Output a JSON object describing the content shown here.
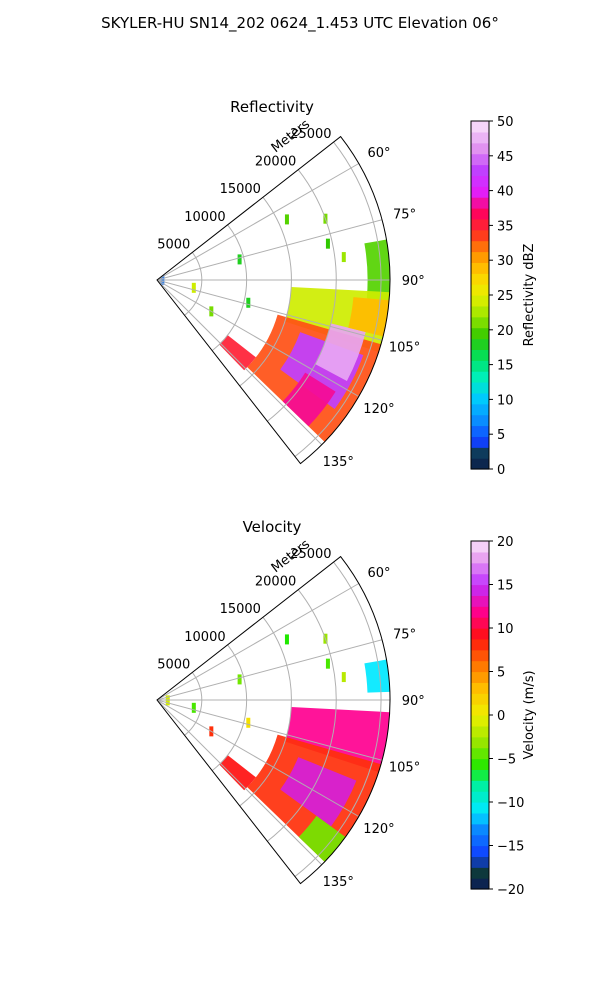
{
  "figure": {
    "title": "SKYLER-HU  SN14_202  0624_1.453 UTC Elevation 06°"
  },
  "chart_data": [
    {
      "type": "heatmap",
      "subtype": "polar-sector-radar-ppi",
      "title": "Reflectivity",
      "radial_axis_label": "Meters",
      "radial_ticks": [
        5000,
        10000,
        15000,
        20000,
        25000
      ],
      "radial_tick_labels": [
        "5000",
        "10000",
        "15000",
        "20000",
        "25000"
      ],
      "rlim": [
        0,
        26000
      ],
      "azimuth_range_deg": [
        52,
        142
      ],
      "azimuth_ticks_deg": [
        60,
        75,
        90,
        105,
        120,
        135
      ],
      "azimuth_tick_labels": [
        "60°",
        "75°",
        "90°",
        "105°",
        "120°",
        "135°"
      ],
      "grid": true,
      "colorbar": {
        "label": "Reflectivity dBZ",
        "range": [
          0,
          50
        ],
        "ticks": [
          0,
          5,
          10,
          15,
          20,
          25,
          30,
          35,
          40,
          45,
          50
        ],
        "tick_labels": [
          "0",
          "5",
          "10",
          "15",
          "20",
          "25",
          "30",
          "35",
          "40",
          "45",
          "50"
        ],
        "stops": [
          {
            "v": 0,
            "c": "#0b1a5a"
          },
          {
            "v": 2,
            "c": "#0d3a3a"
          },
          {
            "v": 4,
            "c": "#1040ff"
          },
          {
            "v": 7,
            "c": "#0a8cff"
          },
          {
            "v": 10,
            "c": "#00c8ff"
          },
          {
            "v": 13,
            "c": "#00f0c0"
          },
          {
            "v": 16,
            "c": "#00e060"
          },
          {
            "v": 19,
            "c": "#30c800"
          },
          {
            "v": 22,
            "c": "#9be600"
          },
          {
            "v": 25,
            "c": "#e8f000"
          },
          {
            "v": 28,
            "c": "#ffd000"
          },
          {
            "v": 31,
            "c": "#ff9000"
          },
          {
            "v": 34,
            "c": "#ff3020"
          },
          {
            "v": 37,
            "c": "#ff0060"
          },
          {
            "v": 40,
            "c": "#e020ff"
          },
          {
            "v": 43,
            "c": "#c040ff"
          },
          {
            "v": 46,
            "c": "#e090f0"
          },
          {
            "v": 50,
            "c": "#fbe6fb"
          }
        ]
      },
      "echo_regions": [
        {
          "r": [
            23500,
            26000
          ],
          "az": [
            80,
            95
          ],
          "value": 20
        },
        {
          "r": [
            15000,
            26000
          ],
          "az": [
            93,
            108
          ],
          "value": 24
        },
        {
          "r": [
            14000,
            26000
          ],
          "az": [
            106,
            134
          ],
          "value": 33
        },
        {
          "r": [
            17000,
            24500
          ],
          "az": [
            110,
            126
          ],
          "value": 43
        },
        {
          "r": [
            20000,
            24000
          ],
          "az": [
            104,
            118
          ],
          "value": 47
        },
        {
          "r": [
            19500,
            23500
          ],
          "az": [
            122,
            134
          ],
          "value": 38
        },
        {
          "r": [
            10000,
            14000
          ],
          "az": [
            128,
            136
          ],
          "value": 35
        },
        {
          "r": [
            22000,
            26000
          ],
          "az": [
            95,
            104
          ],
          "value": 29
        }
      ],
      "scattered_echoes": [
        {
          "r": 9500,
          "az": 76,
          "value": 18
        },
        {
          "r": 16000,
          "az": 65,
          "value": 20
        },
        {
          "r": 19500,
          "az": 78,
          "value": 19
        },
        {
          "r": 20000,
          "az": 70,
          "value": 21
        },
        {
          "r": 21000,
          "az": 83,
          "value": 22
        },
        {
          "r": 7000,
          "az": 120,
          "value": 21
        },
        {
          "r": 10500,
          "az": 104,
          "value": 18
        },
        {
          "r": 4200,
          "az": 102,
          "value": 24
        },
        {
          "r": 600,
          "az": 88,
          "value": 6
        }
      ]
    },
    {
      "type": "heatmap",
      "subtype": "polar-sector-radar-ppi",
      "title": "Velocity",
      "radial_axis_label": "Meters",
      "radial_ticks": [
        5000,
        10000,
        15000,
        20000,
        25000
      ],
      "radial_tick_labels": [
        "5000",
        "10000",
        "15000",
        "20000",
        "25000"
      ],
      "rlim": [
        0,
        26000
      ],
      "azimuth_range_deg": [
        52,
        142
      ],
      "azimuth_ticks_deg": [
        60,
        75,
        90,
        105,
        120,
        135
      ],
      "azimuth_tick_labels": [
        "60°",
        "75°",
        "90°",
        "105°",
        "120°",
        "135°"
      ],
      "grid": true,
      "colorbar": {
        "label": "Velocity (m/s)",
        "range": [
          -20,
          20
        ],
        "ticks": [
          -20,
          -15,
          -10,
          -5,
          0,
          5,
          10,
          15,
          20
        ],
        "tick_labels": [
          "−20",
          "−15",
          "−10",
          "−5",
          "0",
          "5",
          "10",
          "15",
          "20"
        ],
        "stops": [
          {
            "v": -20,
            "c": "#0b1a5a"
          },
          {
            "v": -18,
            "c": "#0d3a3a"
          },
          {
            "v": -16,
            "c": "#1040ff"
          },
          {
            "v": -13,
            "c": "#0a8cff"
          },
          {
            "v": -11,
            "c": "#00e8ff"
          },
          {
            "v": -8,
            "c": "#00f0a0"
          },
          {
            "v": -6,
            "c": "#20e800"
          },
          {
            "v": -3,
            "c": "#9be600"
          },
          {
            "v": 0,
            "c": "#f0f000"
          },
          {
            "v": 3,
            "c": "#ffc000"
          },
          {
            "v": 6,
            "c": "#ff7000"
          },
          {
            "v": 9,
            "c": "#ff1010"
          },
          {
            "v": 12,
            "c": "#ff0090"
          },
          {
            "v": 15,
            "c": "#c030ff"
          },
          {
            "v": 18,
            "c": "#e8a0f0"
          },
          {
            "v": 20,
            "c": "#fbe6fb"
          }
        ]
      },
      "echo_regions": [
        {
          "r": [
            23500,
            26000
          ],
          "az": [
            80,
            88
          ],
          "value": -11
        },
        {
          "r": [
            15000,
            26000
          ],
          "az": [
            93,
            108
          ],
          "value": 12
        },
        {
          "r": [
            14000,
            26000
          ],
          "az": [
            106,
            134
          ],
          "value": 8
        },
        {
          "r": [
            17000,
            24000
          ],
          "az": [
            112,
            126
          ],
          "value": 14
        },
        {
          "r": [
            10000,
            14000
          ],
          "az": [
            128,
            136
          ],
          "value": 9
        },
        {
          "r": [
            22000,
            26000
          ],
          "az": [
            126,
            134
          ],
          "value": -4
        }
      ],
      "scattered_echoes": [
        {
          "r": 9500,
          "az": 76,
          "value": -4
        },
        {
          "r": 16000,
          "az": 65,
          "value": -6
        },
        {
          "r": 19500,
          "az": 78,
          "value": -5
        },
        {
          "r": 20000,
          "az": 70,
          "value": -3
        },
        {
          "r": 21000,
          "az": 83,
          "value": -2
        },
        {
          "r": 7000,
          "az": 120,
          "value": 8
        },
        {
          "r": 10500,
          "az": 104,
          "value": 1
        },
        {
          "r": 4200,
          "az": 102,
          "value": -5
        },
        {
          "r": 1200,
          "az": 92,
          "value": -1
        }
      ]
    }
  ]
}
